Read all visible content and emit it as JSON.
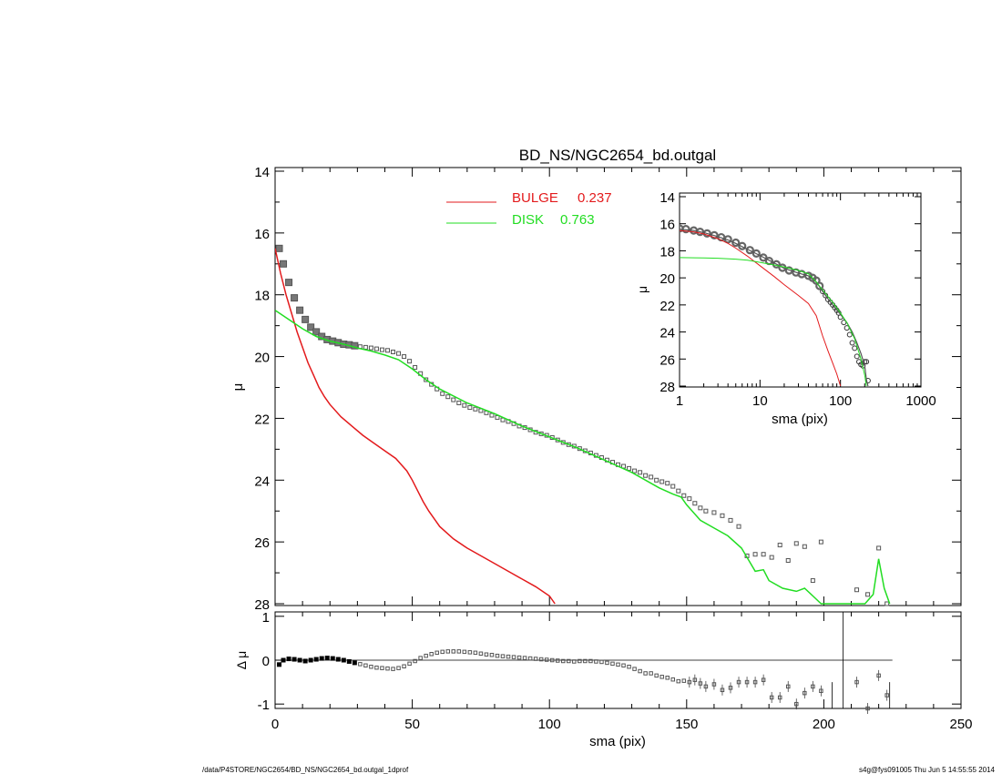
{
  "footer": {
    "left": "/data/P4STORE/NGC2654/BD_NS/NGC2654_bd.outgal_1dprof",
    "right": "s4g@fys091005  Thu Jun  5 14:55:55 2014"
  },
  "colors": {
    "bulge": "#e31a1c",
    "disk": "#22dd22",
    "data": "#555555",
    "axis": "#000000"
  },
  "chart_data": [
    {
      "id": "main",
      "type": "scatter",
      "title": "BD_NS/NGC2654_bd.outgal",
      "xlabel": "",
      "ylabel": "μ",
      "xlim": [
        0,
        250
      ],
      "ylim": [
        28,
        14
      ],
      "y_inverted": true,
      "yticks": [
        "14",
        "16",
        "18",
        "20",
        "22",
        "24",
        "26",
        "28"
      ],
      "legend": {
        "placement": "top-center",
        "entries": [
          {
            "label": "BULGE",
            "value": "0.237",
            "color": "#e31a1c"
          },
          {
            "label": "DISK",
            "value": "0.763",
            "color": "#22dd22"
          }
        ]
      },
      "series": [
        {
          "name": "data",
          "kind": "points",
          "x": [
            1.5,
            3,
            5,
            7,
            9,
            11,
            13,
            15,
            17,
            19,
            21,
            23,
            25,
            27,
            29,
            31,
            33,
            35,
            37,
            39,
            41,
            43,
            45,
            47,
            49,
            51,
            53,
            55,
            57,
            59,
            61,
            63,
            65,
            67,
            69,
            71,
            73,
            75,
            77,
            79,
            81,
            83,
            85,
            87,
            89,
            91,
            93,
            95,
            97,
            99,
            101,
            103,
            105,
            107,
            109,
            111,
            113,
            115,
            117,
            119,
            121,
            123,
            125,
            127,
            129,
            131,
            133,
            135,
            137,
            139,
            141,
            143,
            145,
            147,
            149,
            151,
            153,
            155,
            157,
            160,
            163,
            166,
            169,
            172,
            175,
            178,
            181,
            184,
            187,
            190,
            193,
            196,
            199,
            212,
            216,
            220,
            223
          ],
          "y": [
            16.5,
            17.0,
            17.6,
            18.1,
            18.5,
            18.8,
            19.05,
            19.2,
            19.35,
            19.45,
            19.5,
            19.55,
            19.6,
            19.62,
            19.65,
            19.68,
            19.7,
            19.72,
            19.75,
            19.78,
            19.8,
            19.85,
            19.9,
            20.0,
            20.15,
            20.35,
            20.55,
            20.75,
            20.9,
            21.05,
            21.2,
            21.3,
            21.4,
            21.5,
            21.58,
            21.65,
            21.7,
            21.75,
            21.82,
            21.9,
            21.97,
            22.05,
            22.1,
            22.17,
            22.25,
            22.3,
            22.37,
            22.45,
            22.5,
            22.55,
            22.62,
            22.7,
            22.78,
            22.85,
            22.9,
            22.98,
            23.05,
            23.12,
            23.2,
            23.27,
            23.35,
            23.42,
            23.5,
            23.55,
            23.62,
            23.7,
            23.75,
            23.85,
            23.9,
            24.0,
            24.05,
            24.1,
            24.2,
            24.35,
            24.5,
            24.6,
            24.75,
            24.9,
            25.0,
            25.05,
            25.15,
            25.3,
            25.5,
            26.45,
            26.4,
            26.4,
            26.5,
            26.1,
            26.6,
            26.05,
            26.15,
            27.25,
            26.0,
            27.55,
            27.7,
            26.2,
            28.0
          ]
        },
        {
          "name": "BULGE",
          "kind": "line",
          "color": "#e31a1c",
          "x": [
            0,
            2,
            4,
            6,
            8,
            10,
            12,
            14,
            16,
            18,
            20,
            24,
            28,
            32,
            36,
            40,
            44,
            48,
            50,
            52,
            54,
            56,
            58,
            60,
            65,
            70,
            75,
            80,
            85,
            90,
            95,
            100,
            102
          ],
          "y": [
            16.5,
            17.3,
            18.0,
            18.6,
            19.2,
            19.7,
            20.2,
            20.6,
            21.0,
            21.3,
            21.55,
            21.95,
            22.25,
            22.55,
            22.8,
            23.05,
            23.3,
            23.7,
            24.0,
            24.35,
            24.7,
            25.0,
            25.25,
            25.5,
            25.9,
            26.2,
            26.45,
            26.7,
            26.95,
            27.2,
            27.45,
            27.75,
            28.0
          ]
        },
        {
          "name": "DISK",
          "kind": "line",
          "color": "#22dd22",
          "x": [
            0,
            5,
            10,
            15,
            20,
            25,
            30,
            35,
            40,
            45,
            50,
            55,
            60,
            70,
            80,
            90,
            100,
            110,
            120,
            130,
            140,
            145,
            148,
            150,
            155,
            160,
            165,
            170,
            172,
            175,
            178,
            180,
            185,
            190,
            193,
            196,
            199,
            200,
            202,
            206,
            210,
            215,
            218,
            220,
            222,
            224
          ],
          "y": [
            18.5,
            18.8,
            19.1,
            19.35,
            19.5,
            19.6,
            19.72,
            19.82,
            19.95,
            20.1,
            20.4,
            20.75,
            21.05,
            21.5,
            21.85,
            22.25,
            22.6,
            22.95,
            23.35,
            23.75,
            24.25,
            24.45,
            24.55,
            24.8,
            25.3,
            25.55,
            25.8,
            26.2,
            26.5,
            26.95,
            26.9,
            27.25,
            27.5,
            27.6,
            27.5,
            27.75,
            28.0,
            28.0,
            28.0,
            28.0,
            28.0,
            28.0,
            27.7,
            26.55,
            27.5,
            28.0
          ]
        }
      ]
    },
    {
      "id": "residual",
      "type": "scatter",
      "title": "",
      "xlabel": "sma (pix)",
      "ylabel": "Δ μ",
      "xlim": [
        0,
        250
      ],
      "ylim": [
        -1.1,
        1.1
      ],
      "xticks": [
        "0",
        "50",
        "100",
        "150",
        "200",
        "250"
      ],
      "yticks": [
        "1",
        "0",
        "-1"
      ],
      "zero_line": {
        "y": 0,
        "x_end": 225
      },
      "series": [
        {
          "name": "residual",
          "kind": "points",
          "x": [
            1.5,
            3,
            5,
            7,
            9,
            11,
            13,
            15,
            17,
            19,
            21,
            23,
            25,
            27,
            29,
            31,
            33,
            35,
            37,
            39,
            41,
            43,
            45,
            47,
            49,
            51,
            53,
            55,
            57,
            59,
            61,
            63,
            65,
            67,
            69,
            71,
            73,
            75,
            77,
            79,
            81,
            83,
            85,
            87,
            89,
            91,
            93,
            95,
            97,
            99,
            101,
            103,
            105,
            107,
            109,
            111,
            113,
            115,
            117,
            119,
            121,
            123,
            125,
            127,
            129,
            131,
            133,
            135,
            137,
            139,
            141,
            143,
            145,
            147,
            149,
            151,
            153,
            155,
            157,
            160,
            163,
            166,
            169,
            172,
            175,
            178,
            181,
            184,
            187,
            190,
            193,
            196,
            199,
            212,
            216,
            220,
            223
          ],
          "y": [
            -0.1,
            0.0,
            0.03,
            0.02,
            0.0,
            -0.02,
            0.0,
            0.02,
            0.04,
            0.05,
            0.04,
            0.02,
            0.0,
            -0.03,
            -0.06,
            -0.09,
            -0.12,
            -0.15,
            -0.17,
            -0.18,
            -0.19,
            -0.2,
            -0.18,
            -0.14,
            -0.08,
            -0.02,
            0.05,
            0.1,
            0.14,
            0.17,
            0.19,
            0.2,
            0.2,
            0.2,
            0.19,
            0.18,
            0.17,
            0.15,
            0.13,
            0.12,
            0.1,
            0.09,
            0.08,
            0.07,
            0.06,
            0.05,
            0.04,
            0.03,
            0.02,
            0.01,
            0.0,
            -0.01,
            -0.02,
            -0.02,
            -0.03,
            -0.02,
            -0.02,
            -0.02,
            -0.03,
            -0.04,
            -0.06,
            -0.08,
            -0.1,
            -0.12,
            -0.15,
            -0.2,
            -0.25,
            -0.3,
            -0.3,
            -0.35,
            -0.38,
            -0.4,
            -0.44,
            -0.48,
            -0.47,
            -0.5,
            -0.45,
            -0.53,
            -0.6,
            -0.55,
            -0.68,
            -0.63,
            -0.5,
            -0.5,
            -0.5,
            -0.45,
            -0.85,
            -0.85,
            -0.6,
            -1.0,
            -0.75,
            -0.6,
            -0.7,
            -0.5,
            -1.1,
            -0.35,
            -0.8
          ],
          "spikes": [
            {
              "x": 203,
              "from": -1.1,
              "to": -0.5
            },
            {
              "x": 207,
              "from": -1.1,
              "to": 1.1
            },
            {
              "x": 224,
              "from": -1.1,
              "to": -0.5
            }
          ]
        }
      ]
    },
    {
      "id": "inset",
      "type": "scatter",
      "title": "",
      "xlabel": "sma (pix)",
      "ylabel": "μ",
      "xscale": "log",
      "xlim": [
        1,
        1000
      ],
      "ylim": [
        28,
        14
      ],
      "y_inverted": true,
      "xticks": [
        "1",
        "10",
        "100",
        "1000"
      ],
      "yticks": [
        "14",
        "16",
        "18",
        "20",
        "22",
        "24",
        "26",
        "28"
      ],
      "series": [
        {
          "name": "data",
          "kind": "points",
          "x": [
            1.0,
            1.2,
            1.5,
            1.8,
            2.2,
            2.7,
            3.3,
            4.0,
            5.0,
            6.0,
            7.5,
            9.0,
            11,
            13,
            16,
            19,
            23,
            28,
            33,
            40,
            45,
            50,
            55,
            60,
            65,
            70,
            75,
            80,
            85,
            90,
            95,
            100,
            110,
            120,
            130,
            140,
            150,
            160,
            170,
            180,
            190,
            200,
            210,
            220
          ],
          "y": [
            16.35,
            16.4,
            16.5,
            16.6,
            16.72,
            16.85,
            17.0,
            17.15,
            17.4,
            17.65,
            17.95,
            18.2,
            18.5,
            18.75,
            19.0,
            19.25,
            19.45,
            19.6,
            19.72,
            19.85,
            20.0,
            20.2,
            20.6,
            21.0,
            21.3,
            21.6,
            21.8,
            22.0,
            22.2,
            22.4,
            22.6,
            22.9,
            23.3,
            23.7,
            24.2,
            24.8,
            25.2,
            25.8,
            26.2,
            26.4,
            26.5,
            26.2,
            26.2,
            27.6
          ]
        },
        {
          "name": "model",
          "kind": "line",
          "color": "#555555",
          "x": [
            1.0,
            1.5,
            2,
            3,
            4,
            5,
            7,
            10,
            15,
            20,
            30,
            40,
            50,
            60,
            70,
            80,
            90,
            100,
            120,
            140,
            160,
            180,
            200,
            210,
            220
          ],
          "y": [
            16.4,
            16.5,
            16.65,
            16.95,
            17.2,
            17.45,
            17.9,
            18.35,
            18.9,
            19.3,
            19.65,
            19.85,
            20.3,
            21.0,
            21.55,
            22.0,
            22.35,
            22.7,
            23.3,
            24.0,
            24.8,
            25.6,
            26.5,
            27.5,
            28.0
          ]
        },
        {
          "name": "BULGE",
          "kind": "line",
          "color": "#e31a1c",
          "x": [
            1,
            1.5,
            2,
            3,
            4,
            5,
            7,
            10,
            15,
            20,
            30,
            40,
            50,
            60,
            70,
            80,
            90,
            100
          ],
          "y": [
            16.5,
            16.6,
            16.75,
            17.1,
            17.45,
            17.8,
            18.4,
            19.1,
            19.9,
            20.5,
            21.3,
            21.9,
            22.8,
            24.3,
            25.4,
            26.3,
            27.1,
            28.0
          ]
        },
        {
          "name": "DISK",
          "kind": "line",
          "color": "#22dd22",
          "x": [
            1,
            2,
            3,
            5,
            7,
            10,
            15,
            20,
            30,
            40,
            50,
            60,
            80,
            100,
            120,
            150,
            180,
            200,
            210
          ],
          "y": [
            18.5,
            18.52,
            18.55,
            18.62,
            18.7,
            18.85,
            19.05,
            19.2,
            19.45,
            19.7,
            20.3,
            20.9,
            21.8,
            22.6,
            23.3,
            24.5,
            26.0,
            27.2,
            28.0
          ]
        }
      ]
    }
  ]
}
